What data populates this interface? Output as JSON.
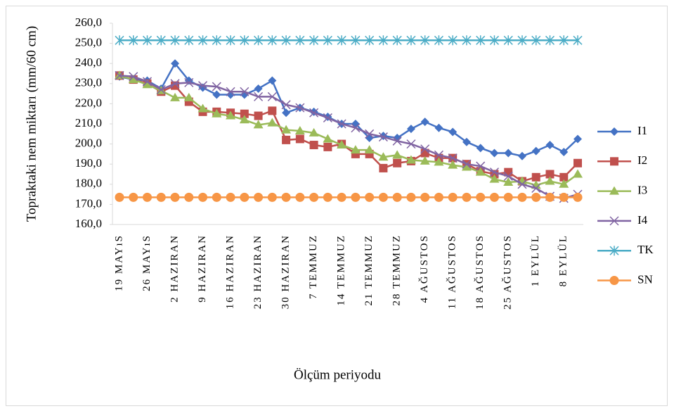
{
  "chart_data": {
    "type": "line",
    "y_label": "Topraktaki nem miktarı (mm/60 cm)",
    "x_label": "Ölçüm periyodu",
    "categories": [
      "19 MAYıS",
      null,
      "26 MAYıS",
      null,
      "2 HAZIRAN",
      null,
      "9 HAZIRAN",
      null,
      "16 HAZIRAN",
      null,
      "23 HAZIRAN",
      null,
      "30 HAZIRAN",
      null,
      "7 TEMMUZ",
      null,
      "14 TEMMUZ",
      null,
      "21 TEMMUZ",
      null,
      "28 TEMMUZ",
      null,
      "4 AĞUSTOS",
      null,
      "11 AĞUSTOS",
      null,
      "18 AĞUSTOS",
      null,
      "25 AĞUSTOS",
      null,
      "1 EYLÜL",
      null,
      "8 EYLÜL",
      null
    ],
    "ylim": [
      160,
      260
    ],
    "yticks": [
      {
        "value": 160,
        "label": "160,0"
      },
      {
        "value": 170,
        "label": "170,0"
      },
      {
        "value": 180,
        "label": "180,0"
      },
      {
        "value": 190,
        "label": "190,0"
      },
      {
        "value": 200,
        "label": "200,0"
      },
      {
        "value": 210,
        "label": "210,0"
      },
      {
        "value": 220,
        "label": "220,0"
      },
      {
        "value": 230,
        "label": "230,0"
      },
      {
        "value": 240,
        "label": "240,0"
      },
      {
        "value": 250,
        "label": "250,0"
      },
      {
        "value": 260,
        "label": "260,0"
      }
    ],
    "grid": false,
    "legend": "right",
    "series": [
      {
        "name": "I1",
        "color": "#4472c4",
        "marker": "diamond",
        "values": [
          233.5,
          232,
          231.5,
          227.5,
          240,
          231.5,
          228,
          224.5,
          224.5,
          224.5,
          227.5,
          231.5,
          215.5,
          218,
          216,
          213.5,
          210,
          210,
          203,
          204,
          203,
          207.5,
          211,
          208,
          206,
          201,
          198,
          195.5,
          195.5,
          194,
          196.5,
          199.5,
          196,
          202.5
        ]
      },
      {
        "name": "I2",
        "color": "#c0504d",
        "marker": "square",
        "values": [
          234,
          232,
          230,
          226,
          229,
          221,
          216,
          216,
          215.5,
          215,
          214,
          216.5,
          202,
          202.5,
          199.5,
          198.5,
          200,
          195,
          195,
          188,
          190.5,
          191.5,
          195.5,
          193,
          193,
          190,
          186.5,
          185,
          186,
          181.5,
          183.5,
          185,
          183.5,
          190.5
        ]
      },
      {
        "name": "I3",
        "color": "#9bbb59",
        "marker": "triangle",
        "values": [
          234,
          232,
          229.5,
          226.5,
          223,
          223,
          217.5,
          215,
          214,
          212,
          209.5,
          210.5,
          207,
          206.5,
          205.5,
          202.5,
          199.5,
          197,
          197,
          193.5,
          194.5,
          192,
          191.5,
          191,
          189.5,
          188.5,
          186,
          182.5,
          181,
          181.5,
          179.5,
          181.5,
          180,
          185
        ]
      },
      {
        "name": "I4",
        "color": "#8064a2",
        "marker": "x",
        "values": [
          234,
          233.5,
          231,
          227,
          230,
          230.5,
          229,
          228.5,
          226,
          226,
          223.5,
          223.5,
          219.5,
          218,
          215.5,
          213,
          210,
          208,
          205,
          203.5,
          201.5,
          200,
          197.5,
          194.5,
          193,
          190,
          189,
          186,
          184,
          180,
          178,
          174,
          173,
          175
        ]
      },
      {
        "name": "TK",
        "color": "#4bacc6",
        "marker": "star",
        "values": [
          251.5,
          251.5,
          251.5,
          251.5,
          251.5,
          251.5,
          251.5,
          251.5,
          251.5,
          251.5,
          251.5,
          251.5,
          251.5,
          251.5,
          251.5,
          251.5,
          251.5,
          251.5,
          251.5,
          251.5,
          251.5,
          251.5,
          251.5,
          251.5,
          251.5,
          251.5,
          251.5,
          251.5,
          251.5,
          251.5,
          251.5,
          251.5,
          251.5,
          251.5
        ]
      },
      {
        "name": "SN",
        "color": "#f79646",
        "marker": "circle",
        "values": [
          173.5,
          173.5,
          173.5,
          173.5,
          173.5,
          173.5,
          173.5,
          173.5,
          173.5,
          173.5,
          173.5,
          173.5,
          173.5,
          173.5,
          173.5,
          173.5,
          173.5,
          173.5,
          173.5,
          173.5,
          173.5,
          173.5,
          173.5,
          173.5,
          173.5,
          173.5,
          173.5,
          173.5,
          173.5,
          173.5,
          173.5,
          173.5,
          173.5,
          173.5
        ]
      }
    ]
  }
}
